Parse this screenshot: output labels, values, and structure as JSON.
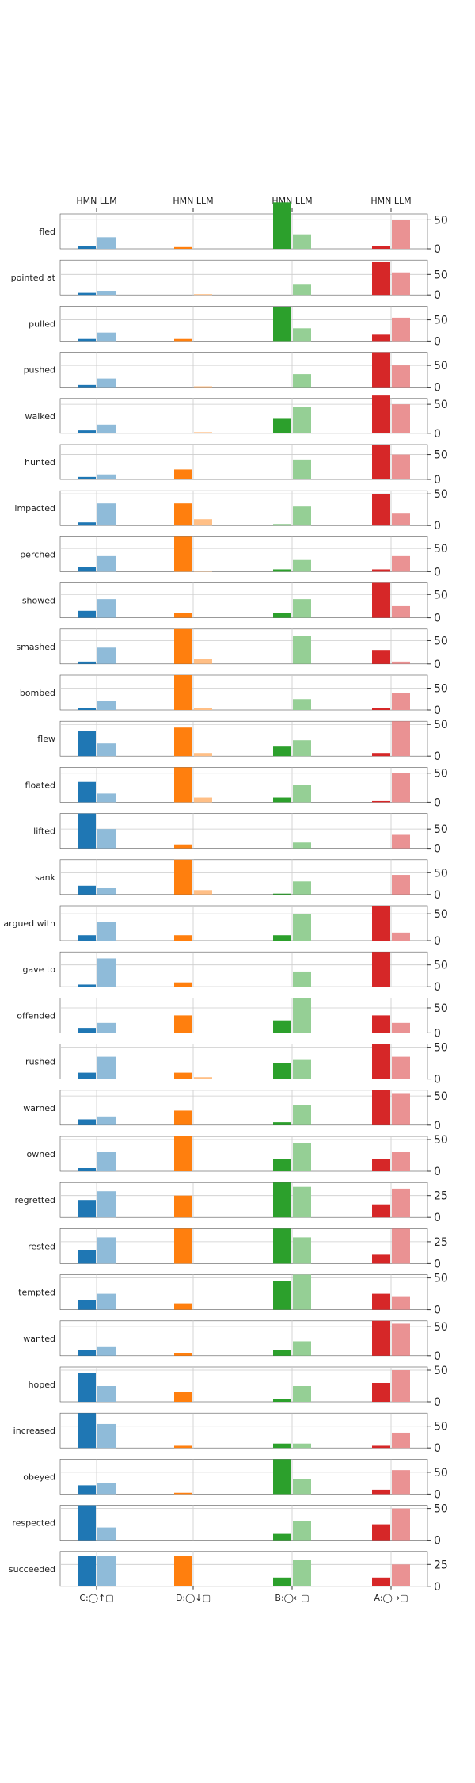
{
  "chart_data": {
    "type": "bar",
    "column_header": "HMN LLM",
    "columns": [
      {
        "label": "C:◯↑▢",
        "color_hmn": "#1f77b4",
        "color_llm": "#8fbbd9"
      },
      {
        "label": "D:◯↓▢",
        "color_hmn": "#ff7f0e",
        "color_llm": "#ffbf86"
      },
      {
        "label": "B:◯←▢",
        "color_hmn": "#2ca02c",
        "color_llm": "#95cf95"
      },
      {
        "label": "A:◯→▢",
        "color_hmn": "#d62728",
        "color_llm": "#ea9293"
      }
    ],
    "rows": [
      {
        "verb": "fled",
        "ymax": 60,
        "ticks": [
          0,
          50
        ],
        "hmn": [
          5,
          3,
          80,
          5
        ],
        "llm": [
          20,
          0,
          25,
          50
        ]
      },
      {
        "verb": "pointed at",
        "ymax": 85,
        "ticks": [
          0,
          50
        ],
        "hmn": [
          5,
          0,
          0,
          80
        ],
        "llm": [
          10,
          2,
          25,
          55
        ]
      },
      {
        "verb": "pulled",
        "ymax": 82,
        "ticks": [
          0,
          50
        ],
        "hmn": [
          5,
          5,
          80,
          15
        ],
        "llm": [
          20,
          0,
          30,
          55
        ]
      },
      {
        "verb": "pushed",
        "ymax": 80,
        "ticks": [
          0,
          50
        ],
        "hmn": [
          5,
          0,
          0,
          80
        ],
        "llm": [
          20,
          2,
          30,
          50
        ]
      },
      {
        "verb": "walked",
        "ymax": 60,
        "ticks": [
          0,
          50
        ],
        "hmn": [
          5,
          0,
          25,
          65
        ],
        "llm": [
          15,
          2,
          45,
          50
        ]
      },
      {
        "verb": "hunted",
        "ymax": 70,
        "ticks": [
          0,
          50
        ],
        "hmn": [
          5,
          20,
          0,
          70
        ],
        "llm": [
          10,
          0,
          40,
          50
        ]
      },
      {
        "verb": "impacted",
        "ymax": 55,
        "ticks": [
          0,
          50
        ],
        "hmn": [
          5,
          35,
          2,
          50
        ],
        "llm": [
          35,
          10,
          30,
          20
        ]
      },
      {
        "verb": "perched",
        "ymax": 75,
        "ticks": [
          0,
          50
        ],
        "hmn": [
          10,
          75,
          5,
          5
        ],
        "llm": [
          35,
          2,
          25,
          35
        ]
      },
      {
        "verb": "showed",
        "ymax": 75,
        "ticks": [
          0,
          50
        ],
        "hmn": [
          15,
          10,
          10,
          75
        ],
        "llm": [
          40,
          0,
          40,
          25
        ]
      },
      {
        "verb": "smashed",
        "ymax": 75,
        "ticks": [
          0,
          50
        ],
        "hmn": [
          5,
          75,
          0,
          30
        ],
        "llm": [
          35,
          10,
          60,
          5
        ]
      },
      {
        "verb": "bombed",
        "ymax": 80,
        "ticks": [
          0,
          50
        ],
        "hmn": [
          5,
          80,
          0,
          5
        ],
        "llm": [
          20,
          5,
          25,
          40
        ]
      },
      {
        "verb": "flew",
        "ymax": 55,
        "ticks": [
          0,
          50
        ],
        "hmn": [
          40,
          45,
          15,
          5
        ],
        "llm": [
          20,
          5,
          25,
          55
        ]
      },
      {
        "verb": "floated",
        "ymax": 60,
        "ticks": [
          0,
          50
        ],
        "hmn": [
          35,
          60,
          8,
          2
        ],
        "llm": [
          15,
          8,
          30,
          50
        ]
      },
      {
        "verb": "lifted",
        "ymax": 90,
        "ticks": [
          0,
          50
        ],
        "hmn": [
          90,
          10,
          0,
          0
        ],
        "llm": [
          50,
          0,
          15,
          35
        ]
      },
      {
        "verb": "sank",
        "ymax": 80,
        "ticks": [
          0,
          50
        ],
        "hmn": [
          20,
          80,
          2,
          0
        ],
        "llm": [
          15,
          10,
          30,
          45
        ]
      },
      {
        "verb": "argued with",
        "ymax": 65,
        "ticks": [
          0,
          50
        ],
        "hmn": [
          10,
          10,
          10,
          65
        ],
        "llm": [
          35,
          0,
          50,
          15
        ]
      },
      {
        "verb": "gave to",
        "ymax": 80,
        "ticks": [
          0,
          50
        ],
        "hmn": [
          5,
          10,
          0,
          80
        ],
        "llm": [
          65,
          0,
          35,
          0
        ]
      },
      {
        "verb": "offended",
        "ymax": 70,
        "ticks": [
          0,
          50
        ],
        "hmn": [
          10,
          35,
          25,
          35
        ],
        "llm": [
          20,
          0,
          70,
          20
        ]
      },
      {
        "verb": "rushed",
        "ymax": 55,
        "ticks": [
          0,
          50
        ],
        "hmn": [
          10,
          10,
          25,
          55
        ],
        "llm": [
          35,
          3,
          30,
          35
        ]
      },
      {
        "verb": "warned",
        "ymax": 60,
        "ticks": [
          0,
          50
        ],
        "hmn": [
          10,
          25,
          5,
          60
        ],
        "llm": [
          15,
          0,
          35,
          55
        ]
      },
      {
        "verb": "owned",
        "ymax": 55,
        "ticks": [
          0,
          50
        ],
        "hmn": [
          5,
          55,
          20,
          20
        ],
        "llm": [
          30,
          0,
          45,
          30
        ]
      },
      {
        "verb": "regretted",
        "ymax": 40,
        "ticks": [
          0,
          25
        ],
        "hmn": [
          20,
          25,
          40,
          15
        ],
        "llm": [
          30,
          0,
          35,
          33
        ]
      },
      {
        "verb": "rested",
        "ymax": 40,
        "ticks": [
          0,
          25
        ],
        "hmn": [
          15,
          40,
          40,
          10
        ],
        "llm": [
          30,
          0,
          30,
          40
        ]
      },
      {
        "verb": "tempted",
        "ymax": 55,
        "ticks": [
          0,
          50
        ],
        "hmn": [
          15,
          10,
          45,
          25
        ],
        "llm": [
          25,
          0,
          55,
          20
        ]
      },
      {
        "verb": "wanted",
        "ymax": 60,
        "ticks": [
          0,
          50
        ],
        "hmn": [
          10,
          5,
          10,
          60
        ],
        "llm": [
          15,
          0,
          25,
          55
        ]
      },
      {
        "verb": "hoped",
        "ymax": 55,
        "ticks": [
          0,
          50
        ],
        "hmn": [
          45,
          15,
          5,
          30
        ],
        "llm": [
          25,
          0,
          25,
          50
        ]
      },
      {
        "verb": "increased",
        "ymax": 80,
        "ticks": [
          0,
          50
        ],
        "hmn": [
          80,
          5,
          10,
          5
        ],
        "llm": [
          55,
          0,
          10,
          35
        ]
      },
      {
        "verb": "obeyed",
        "ymax": 80,
        "ticks": [
          0,
          50
        ],
        "hmn": [
          20,
          3,
          80,
          10
        ],
        "llm": [
          25,
          0,
          35,
          55
        ]
      },
      {
        "verb": "respected",
        "ymax": 55,
        "ticks": [
          0,
          50
        ],
        "hmn": [
          55,
          0,
          10,
          25
        ],
        "llm": [
          20,
          0,
          30,
          50
        ]
      },
      {
        "verb": "succeeded",
        "ymax": 40,
        "ticks": [
          0,
          25
        ],
        "hmn": [
          35,
          35,
          10,
          10
        ],
        "llm": [
          35,
          0,
          30,
          25
        ]
      }
    ]
  }
}
